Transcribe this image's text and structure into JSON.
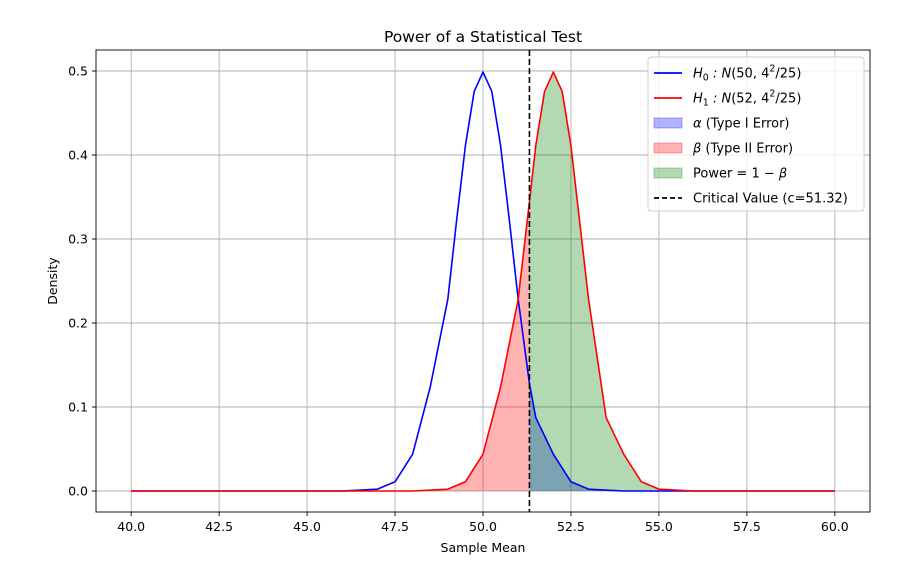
{
  "chart_data": {
    "type": "area",
    "title": "Power of a Statistical Test",
    "xlabel": "Sample Mean",
    "ylabel": "Density",
    "xlim": [
      39.0,
      61.0
    ],
    "ylim": [
      -0.025,
      0.525
    ],
    "x_ticks": [
      40.0,
      42.5,
      45.0,
      47.5,
      50.0,
      52.5,
      55.0,
      57.5,
      60.0
    ],
    "x_tick_labels": [
      "40.0",
      "42.5",
      "45.0",
      "47.5",
      "50.0",
      "52.5",
      "55.0",
      "57.5",
      "60.0"
    ],
    "y_ticks": [
      0.0,
      0.1,
      0.2,
      0.3,
      0.4,
      0.5
    ],
    "y_tick_labels": [
      "0.0",
      "0.1",
      "0.2",
      "0.3",
      "0.4",
      "0.5"
    ],
    "grid": true,
    "legend_position": "top-right",
    "critical_value": 51.32,
    "series": [
      {
        "kind": "line",
        "name": "H0 : N(50, 4^2/25)",
        "color": "#0000ff",
        "x": [
          40.0,
          46.0,
          47.0,
          47.5,
          48.0,
          48.5,
          49.0,
          49.25,
          49.5,
          49.75,
          50.0,
          50.25,
          50.5,
          50.75,
          51.0,
          51.32,
          51.5,
          52.0,
          52.5,
          53.0,
          54.0,
          60.0
        ],
        "y": [
          0.0,
          0.0,
          0.0022,
          0.011,
          0.0438,
          0.1238,
          0.2283,
          0.3221,
          0.4111,
          0.4757,
          0.4987,
          0.4757,
          0.4111,
          0.3221,
          0.2283,
          0.1278,
          0.0874,
          0.0438,
          0.011,
          0.0022,
          0.0,
          0.0
        ]
      },
      {
        "kind": "line",
        "name": "H1 : N(52, 4^2/25)",
        "color": "#ff0000",
        "x": [
          40.0,
          48.0,
          49.0,
          49.5,
          50.0,
          50.5,
          51.0,
          51.32,
          51.5,
          51.75,
          52.0,
          52.25,
          52.5,
          53.0,
          53.5,
          54.0,
          54.5,
          55.0,
          56.0,
          60.0
        ],
        "y": [
          0.0,
          0.0,
          0.0022,
          0.011,
          0.0438,
          0.1238,
          0.2283,
          0.3443,
          0.4111,
          0.4757,
          0.4987,
          0.4757,
          0.4111,
          0.2283,
          0.0874,
          0.0438,
          0.011,
          0.0022,
          0.0,
          0.0
        ]
      },
      {
        "kind": "fill",
        "name": "α (Type I Error)",
        "color": "#0000ff",
        "opacity": 0.3,
        "curve": 0,
        "x_from": 51.32,
        "x_to": 60.0
      },
      {
        "kind": "fill",
        "name": "β (Type II Error)",
        "color": "#ff0000",
        "opacity": 0.3,
        "curve": 1,
        "x_from": 40.0,
        "x_to": 51.32
      },
      {
        "kind": "fill",
        "name": "Power = 1 − β",
        "color": "#008000",
        "opacity": 0.3,
        "curve": 1,
        "x_from": 51.32,
        "x_to": 60.0
      }
    ],
    "legend": [
      {
        "kind": "line",
        "color": "#0000ff",
        "parts": [
          [
            "i",
            "H"
          ],
          [
            "sub",
            "0"
          ],
          [
            "i",
            " : N"
          ],
          [
            "t",
            "(50, 4"
          ],
          [
            "sup",
            "2"
          ],
          [
            "t",
            "/25)"
          ]
        ]
      },
      {
        "kind": "line",
        "color": "#ff0000",
        "parts": [
          [
            "i",
            "H"
          ],
          [
            "sub",
            "1"
          ],
          [
            "i",
            " : N"
          ],
          [
            "t",
            "(52, 4"
          ],
          [
            "sup",
            "2"
          ],
          [
            "t",
            "/25)"
          ]
        ]
      },
      {
        "kind": "patch",
        "color": "#0000ff",
        "parts": [
          [
            "i",
            "α"
          ],
          [
            "t",
            " (Type I Error)"
          ]
        ]
      },
      {
        "kind": "patch",
        "color": "#ff0000",
        "parts": [
          [
            "i",
            "β"
          ],
          [
            "t",
            " (Type II Error)"
          ]
        ]
      },
      {
        "kind": "patch",
        "color": "#008000",
        "parts": [
          [
            "t",
            "Power = 1 − "
          ],
          [
            "i",
            "β"
          ]
        ]
      },
      {
        "kind": "dash",
        "color": "#000000",
        "parts": [
          [
            "t",
            "Critical Value (c=51.32)"
          ]
        ]
      }
    ]
  }
}
